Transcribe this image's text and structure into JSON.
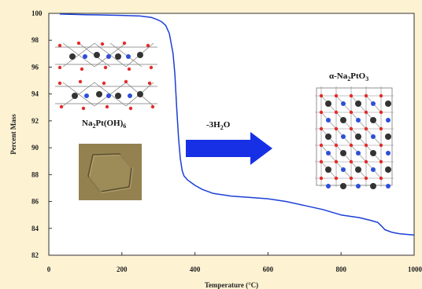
{
  "chart_data": {
    "type": "line",
    "xlabel": "Temperature (°C)",
    "ylabel": "Percent Mass",
    "xlim": [
      0,
      1000
    ],
    "ylim": [
      82,
      100
    ],
    "xticks": [
      "0",
      "200",
      "400",
      "600",
      "800",
      "1000"
    ],
    "yticks": [
      "82",
      "84",
      "86",
      "88",
      "90",
      "92",
      "94",
      "96",
      "98",
      "100"
    ],
    "grid": false,
    "series": [
      {
        "color": "#1a3fd6",
        "x": [
          30,
          100,
          150,
          200,
          250,
          280,
          300,
          310,
          320,
          330,
          340,
          345,
          350,
          355,
          360,
          365,
          370,
          380,
          390,
          400,
          420,
          450,
          500,
          550,
          600,
          650,
          700,
          750,
          800,
          850,
          880,
          900,
          910,
          920,
          940,
          960,
          980,
          1000
        ],
        "y": [
          99.95,
          99.9,
          99.88,
          99.85,
          99.8,
          99.7,
          99.5,
          99.35,
          99.1,
          98.5,
          97.0,
          95.5,
          93.0,
          90.8,
          89.2,
          88.3,
          87.9,
          87.6,
          87.4,
          87.2,
          86.9,
          86.6,
          86.4,
          86.3,
          86.2,
          86.0,
          85.7,
          85.4,
          85.0,
          84.8,
          84.6,
          84.45,
          84.2,
          83.9,
          83.7,
          83.6,
          83.55,
          83.5
        ]
      }
    ],
    "annotations": {
      "compound_left": "Na",
      "compound_left_sub1": "2",
      "compound_left_mid": "Pt(OH)",
      "compound_left_sub2": "6",
      "arrow_label": "-3H",
      "arrow_label_sub": "2",
      "arrow_label_end": "O",
      "compound_right": "α-Na",
      "compound_right_sub1": "2",
      "compound_right_mid": "PtO",
      "compound_right_sub2": "3"
    }
  },
  "colors": {
    "background": "#fdf2d2",
    "plot_bg": "#ffffff",
    "curve": "#1a3fd6",
    "arrow": "#1730e6",
    "crystal_bg": "#8a7a4a"
  }
}
